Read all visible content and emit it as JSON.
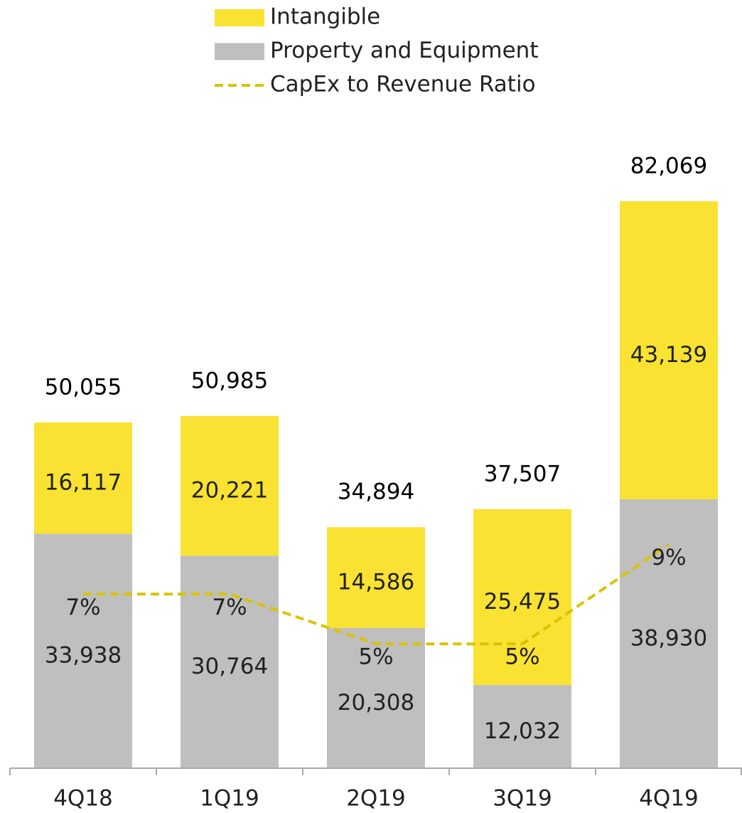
{
  "chart_data": {
    "type": "bar",
    "categories": [
      "4Q18",
      "1Q19",
      "2Q19",
      "3Q19",
      "4Q19"
    ],
    "series": [
      {
        "name": "Intangible",
        "color": "#f9e231",
        "values": [
          16117,
          20221,
          14586,
          25475,
          43139
        ],
        "value_labels": [
          "16,117",
          "20,221",
          "14,586",
          "25,475",
          "43,139"
        ]
      },
      {
        "name": "Property and Equipment",
        "color": "#bfbfbf",
        "values": [
          33938,
          30764,
          20308,
          12032,
          38930
        ],
        "value_labels": [
          "33,938",
          "30,764",
          "20,308",
          "12,032",
          "38,930"
        ]
      },
      {
        "name": "CapEx to Revenue Ratio",
        "type": "line",
        "axis": "y2",
        "color": "#d9c300",
        "values": [
          7,
          7,
          5,
          5,
          9
        ],
        "value_labels": [
          "7%",
          "7%",
          "5%",
          "5%",
          "9%"
        ]
      }
    ],
    "totals": [
      50055,
      50985,
      34894,
      37507,
      82069
    ],
    "total_labels": [
      "50,055",
      "50,985",
      "34,894",
      "37,507",
      "82,069"
    ],
    "ylim": [
      0,
      90000
    ],
    "y2lim": [
      0,
      25
    ],
    "stacked": true
  }
}
